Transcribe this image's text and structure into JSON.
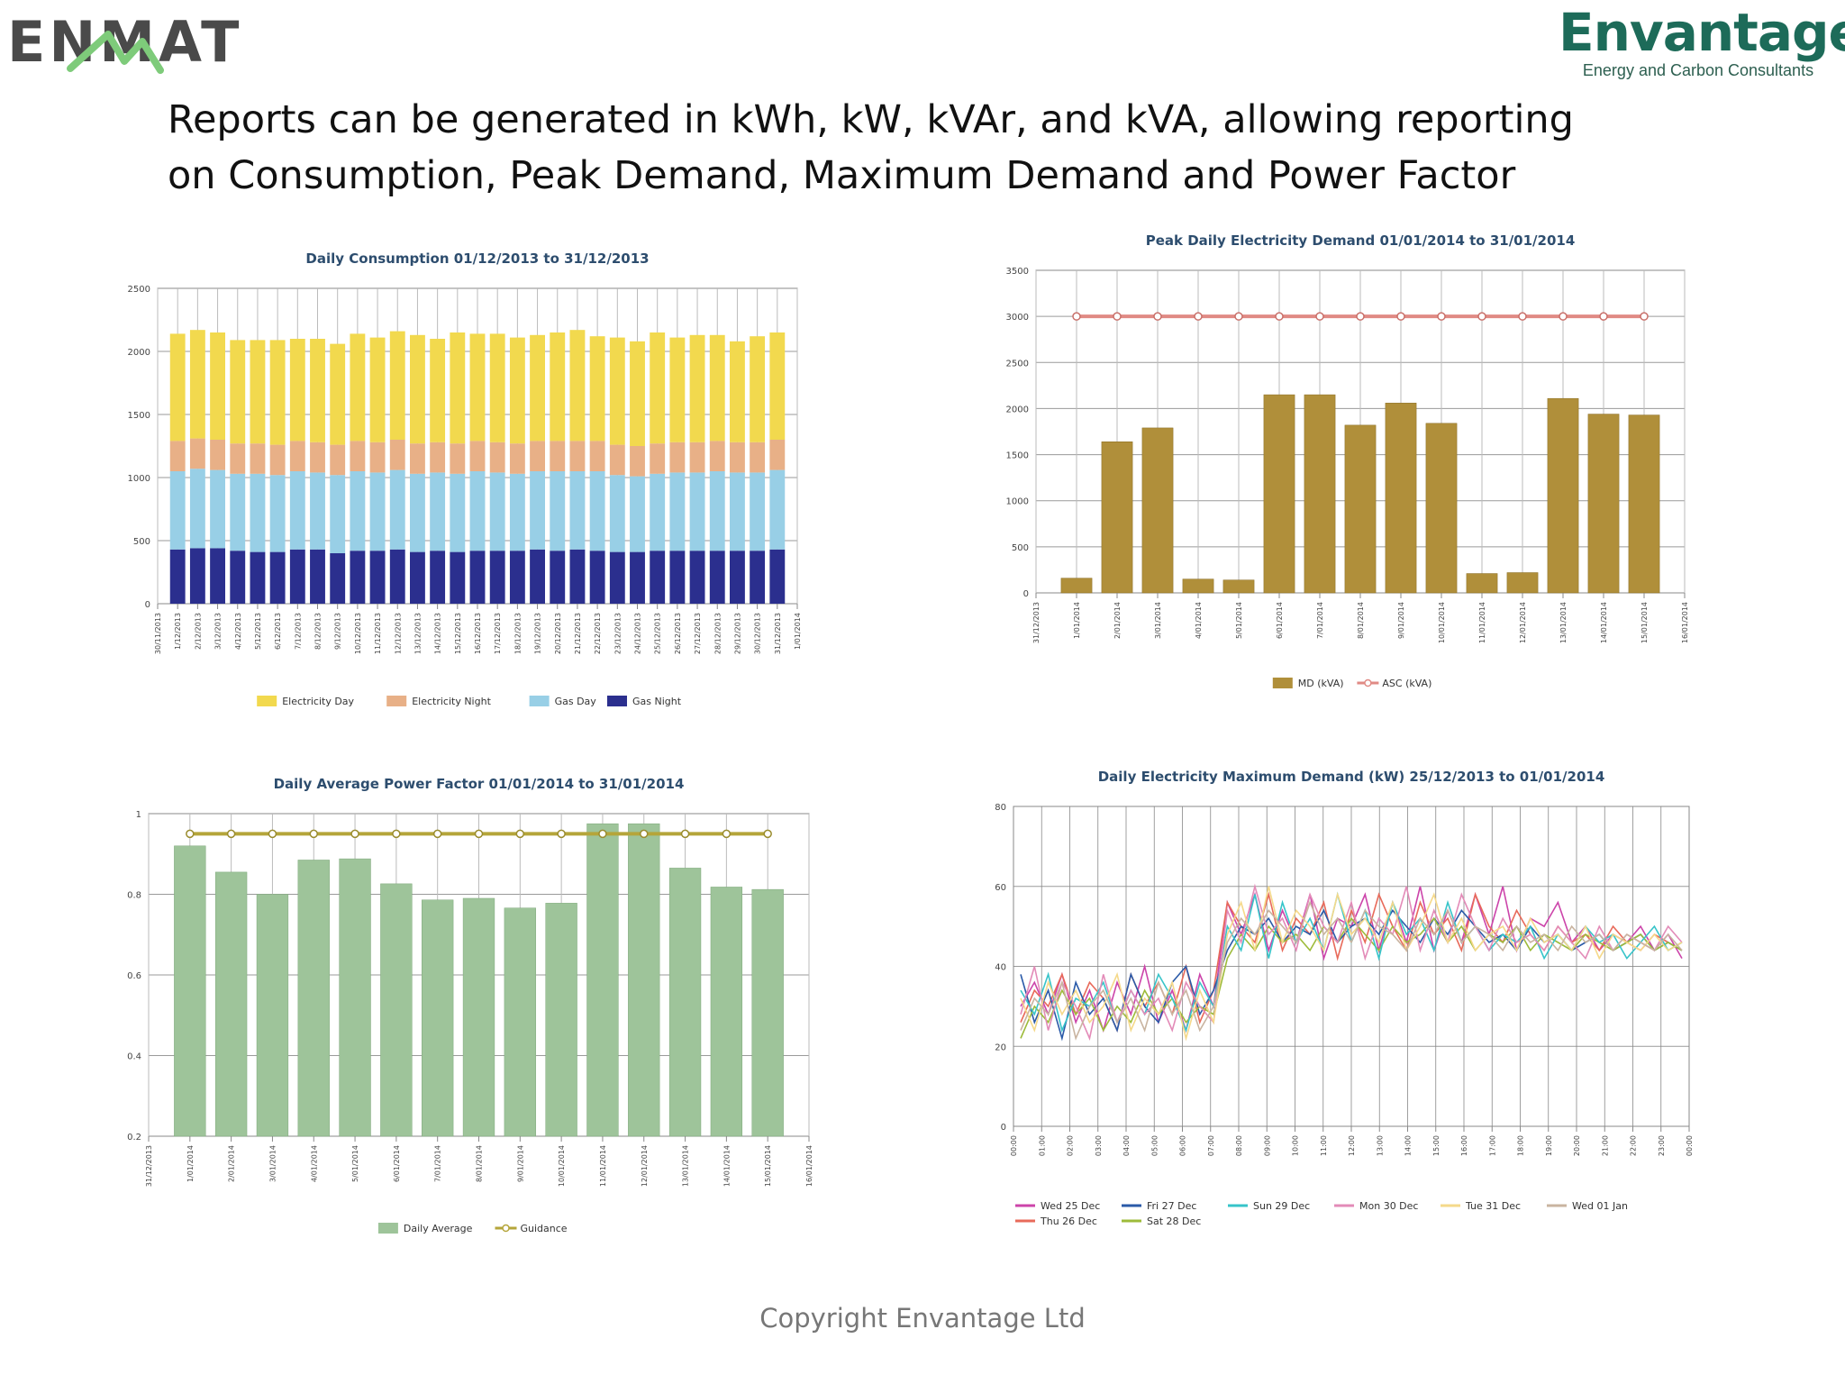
{
  "logos": {
    "left_text": "ENMAT",
    "right_name": "Envantage",
    "right_tagline": "Energy and Carbon Consultants"
  },
  "headline": {
    "line1": "Reports can be generated in kWh, kW, kVAr, and kVA, allowing reporting",
    "line2": "on Consumption, Peak Demand, Maximum Demand and Power Factor"
  },
  "footer": {
    "text": "Copyright Envantage Ltd"
  },
  "colors": {
    "electricity_day": "#f2d94e",
    "electricity_night": "#e8b087",
    "gas_day": "#98cfe6",
    "gas_night": "#2b2f8e",
    "md_bar": "#b08f3a",
    "asc_line": "#e08a84",
    "pf_bar": "#9ec49a",
    "guidance_line": "#b5a53a",
    "brand_green": "#1d6b59",
    "enmat_grey": "#4a4a4a",
    "enmat_green": "#7ecb7a"
  },
  "chart_data": [
    {
      "id": "consumption",
      "type": "bar",
      "stacked": true,
      "title": "Daily Consumption 01/12/2013 to 31/12/2013",
      "x_tick_labels": [
        "30/11/2013",
        "1/12/2013",
        "2/12/2013",
        "3/12/2013",
        "4/12/2013",
        "5/12/2013",
        "6/12/2013",
        "7/12/2013",
        "8/12/2013",
        "9/12/2013",
        "10/12/2013",
        "11/12/2013",
        "12/12/2013",
        "13/12/2013",
        "14/12/2013",
        "15/12/2013",
        "16/12/2013",
        "17/12/2013",
        "18/12/2013",
        "19/12/2013",
        "20/12/2013",
        "21/12/2013",
        "22/12/2013",
        "23/12/2013",
        "24/12/2013",
        "25/12/2013",
        "26/12/2013",
        "27/12/2013",
        "28/12/2013",
        "29/12/2013",
        "30/12/2013",
        "31/12/2013",
        "1/01/2014"
      ],
      "categories": [
        "1/12/2013",
        "2/12/2013",
        "3/12/2013",
        "4/12/2013",
        "5/12/2013",
        "6/12/2013",
        "7/12/2013",
        "8/12/2013",
        "9/12/2013",
        "10/12/2013",
        "11/12/2013",
        "12/12/2013",
        "13/12/2013",
        "14/12/2013",
        "15/12/2013",
        "16/12/2013",
        "17/12/2013",
        "18/12/2013",
        "19/12/2013",
        "20/12/2013",
        "21/12/2013",
        "22/12/2013",
        "23/12/2013",
        "24/12/2013",
        "25/12/2013",
        "26/12/2013",
        "27/12/2013",
        "28/12/2013",
        "29/12/2013",
        "30/12/2013",
        "31/12/2013"
      ],
      "ylim": [
        0,
        2500
      ],
      "yticks": [
        0,
        500,
        1000,
        1500,
        2000,
        2500
      ],
      "legend_position": "bottom",
      "series": [
        {
          "name": "Gas Night",
          "color_key": "gas_night",
          "values": [
            430,
            440,
            440,
            420,
            410,
            410,
            430,
            430,
            400,
            420,
            420,
            430,
            410,
            420,
            410,
            420,
            420,
            420,
            430,
            420,
            430,
            420,
            410,
            410,
            420,
            420,
            420,
            420,
            420,
            420,
            430
          ]
        },
        {
          "name": "Gas Day",
          "color_key": "gas_day",
          "values": [
            620,
            630,
            620,
            610,
            620,
            610,
            620,
            610,
            620,
            630,
            620,
            630,
            620,
            620,
            620,
            630,
            620,
            610,
            620,
            630,
            620,
            630,
            610,
            600,
            610,
            620,
            620,
            630,
            620,
            620,
            630
          ]
        },
        {
          "name": "Electricity Night",
          "color_key": "electricity_night",
          "values": [
            240,
            240,
            240,
            240,
            240,
            240,
            240,
            240,
            240,
            240,
            240,
            240,
            240,
            240,
            240,
            240,
            240,
            240,
            240,
            240,
            240,
            240,
            240,
            240,
            240,
            240,
            240,
            240,
            240,
            240,
            240
          ]
        },
        {
          "name": "Electricity Day",
          "color_key": "electricity_day",
          "values": [
            850,
            860,
            850,
            820,
            820,
            830,
            810,
            820,
            800,
            850,
            830,
            860,
            860,
            820,
            880,
            850,
            860,
            840,
            840,
            860,
            880,
            830,
            850,
            830,
            880,
            830,
            850,
            840,
            800,
            840,
            850
          ]
        }
      ]
    },
    {
      "id": "peak_demand",
      "type": "bar",
      "title": "Peak Daily Electricity Demand 01/01/2014 to 31/01/2014",
      "categories": [
        "31/12/2013",
        "1/01/2014",
        "2/01/2014",
        "3/01/2014",
        "4/01/2014",
        "5/01/2014",
        "6/01/2014",
        "7/01/2014",
        "8/01/2014",
        "9/01/2014",
        "10/01/2014",
        "11/01/2014",
        "12/01/2014",
        "13/01/2014",
        "14/01/2014",
        "15/01/2014",
        "16/01/2014"
      ],
      "ylim": [
        0,
        3500
      ],
      "yticks": [
        0,
        500,
        1000,
        1500,
        2000,
        2500,
        3000,
        3500
      ],
      "legend_position": "bottom",
      "series": [
        {
          "name": "MD (kVA)",
          "color_key": "md_bar",
          "values": [
            null,
            160,
            1640,
            1790,
            150,
            140,
            2150,
            2150,
            1820,
            2060,
            1840,
            210,
            220,
            2110,
            1940,
            1930,
            null
          ]
        },
        {
          "name": "ASC (kVA)",
          "color_key": "asc_line",
          "style": "line",
          "values": [
            null,
            3000,
            3000,
            3000,
            3000,
            3000,
            3000,
            3000,
            3000,
            3000,
            3000,
            3000,
            3000,
            3000,
            3000,
            3000,
            null
          ]
        }
      ]
    },
    {
      "id": "power_factor",
      "type": "bar",
      "title": "Daily Average Power Factor 01/01/2014 to 31/01/2014",
      "categories": [
        "31/12/2013",
        "1/01/2014",
        "2/01/2014",
        "3/01/2014",
        "4/01/2014",
        "5/01/2014",
        "6/01/2014",
        "7/01/2014",
        "8/01/2014",
        "9/01/2014",
        "10/01/2014",
        "11/01/2014",
        "12/01/2014",
        "13/01/2014",
        "14/01/2014",
        "15/01/2014",
        "16/01/2014"
      ],
      "ylim": [
        0.2,
        1
      ],
      "yticks": [
        0.2,
        0.4,
        0.6,
        0.8,
        1
      ],
      "ytick_labels": [
        "0.2",
        "0.4",
        "0.6",
        "0.8",
        "1"
      ],
      "legend_position": "bottom",
      "series": [
        {
          "name": "Daily Average",
          "color_key": "pf_bar",
          "values": [
            null,
            0.92,
            0.855,
            0.8,
            0.885,
            0.888,
            0.826,
            0.786,
            0.79,
            0.766,
            0.778,
            0.975,
            0.975,
            0.865,
            0.818,
            0.812,
            null
          ]
        },
        {
          "name": "Guidance",
          "color_key": "guidance_line",
          "style": "line",
          "values": [
            null,
            0.95,
            0.95,
            0.95,
            0.95,
            0.95,
            0.95,
            0.95,
            0.95,
            0.95,
            0.95,
            0.95,
            0.95,
            0.95,
            0.95,
            0.95,
            null
          ]
        }
      ]
    },
    {
      "id": "max_demand",
      "type": "line",
      "title": "Daily Electricity Maximum Demand (kW) 25/12/2013 to 01/01/2014",
      "x_tick_labels": [
        "00:00",
        "01:00",
        "02:00",
        "03:00",
        "04:00",
        "05:00",
        "06:00",
        "07:00",
        "08:00",
        "09:00",
        "10:00",
        "11:00",
        "12:00",
        "13:00",
        "14:00",
        "15:00",
        "16:00",
        "17:00",
        "18:00",
        "19:00",
        "20:00",
        "21:00",
        "22:00",
        "23:00",
        "00:00"
      ],
      "ylim": [
        0,
        80
      ],
      "yticks": [
        0,
        20,
        40,
        60,
        80
      ],
      "legend_position": "bottom",
      "series": [
        {
          "name": "Wed 25 Dec",
          "color": "#cc44aa",
          "values": [
            30,
            36,
            28,
            38,
            26,
            34,
            24,
            36,
            28,
            40,
            26,
            34,
            24,
            38,
            30,
            56,
            48,
            58,
            44,
            54,
            46,
            58,
            42,
            52,
            50,
            58,
            44,
            56,
            46,
            60,
            44,
            54,
            46,
            58,
            48,
            60,
            44,
            52,
            50,
            56,
            46,
            50,
            44,
            48,
            46,
            50,
            44,
            48,
            42
          ]
        },
        {
          "name": "Thu 26 Dec",
          "color": "#e86a5a",
          "values": [
            26,
            34,
            30,
            38,
            28,
            36,
            32,
            24,
            38,
            30,
            36,
            28,
            40,
            26,
            34,
            56,
            50,
            46,
            58,
            44,
            52,
            48,
            56,
            42,
            54,
            46,
            58,
            50,
            44,
            56,
            48,
            52,
            44,
            58,
            50,
            46,
            54,
            48,
            44,
            50,
            46,
            48,
            44,
            50,
            46,
            44,
            48,
            46,
            44
          ]
        },
        {
          "name": "Fri 27 Dec",
          "color": "#2a5aa8",
          "values": [
            38,
            26,
            34,
            22,
            36,
            28,
            32,
            24,
            38,
            30,
            26,
            36,
            40,
            28,
            34,
            44,
            50,
            48,
            52,
            46,
            50,
            48,
            54,
            46,
            50,
            52,
            48,
            54,
            50,
            46,
            52,
            48,
            54,
            50,
            46,
            48,
            44,
            50,
            46,
            48,
            44,
            46,
            48,
            44,
            46,
            48,
            44,
            46,
            44
          ]
        },
        {
          "name": "Sat 28 Dec",
          "color": "#9dbb3a",
          "values": [
            22,
            30,
            26,
            34,
            28,
            32,
            24,
            30,
            26,
            34,
            28,
            32,
            26,
            30,
            28,
            42,
            48,
            44,
            50,
            46,
            48,
            44,
            50,
            46,
            52,
            48,
            44,
            50,
            46,
            48,
            52,
            46,
            50,
            44,
            48,
            46,
            50,
            44,
            48,
            46,
            44,
            48,
            46,
            44,
            46,
            48,
            44,
            46,
            44
          ]
        },
        {
          "name": "Sun 29 Dec",
          "color": "#37c4c9",
          "values": [
            34,
            28,
            38,
            24,
            32,
            30,
            36,
            26,
            34,
            28,
            38,
            32,
            24,
            36,
            30,
            50,
            44,
            58,
            42,
            56,
            46,
            52,
            44,
            58,
            46,
            54,
            42,
            56,
            48,
            52,
            44,
            56,
            46,
            50,
            44,
            48,
            46,
            50,
            42,
            48,
            44,
            50,
            46,
            48,
            42,
            46,
            50,
            44,
            46
          ]
        },
        {
          "name": "Mon 30 Dec",
          "color": "#e38bb8",
          "values": [
            28,
            40,
            24,
            36,
            30,
            22,
            38,
            26,
            34,
            28,
            32,
            24,
            36,
            30,
            26,
            54,
            46,
            60,
            48,
            52,
            44,
            58,
            50,
            46,
            56,
            42,
            52,
            48,
            60,
            44,
            54,
            46,
            58,
            50,
            44,
            52,
            46,
            48,
            44,
            50,
            46,
            42,
            50,
            44,
            48,
            46,
            44,
            50,
            46
          ]
        },
        {
          "name": "Tue 31 Dec",
          "color": "#f5d98a",
          "values": [
            32,
            24,
            36,
            28,
            34,
            26,
            30,
            38,
            24,
            32,
            28,
            36,
            22,
            34,
            26,
            48,
            56,
            44,
            60,
            46,
            54,
            50,
            44,
            58,
            48,
            52,
            46,
            56,
            44,
            50,
            58,
            46,
            52,
            44,
            48,
            50,
            44,
            52,
            46,
            48,
            44,
            50,
            42,
            48,
            46,
            44,
            48,
            44,
            46
          ]
        },
        {
          "name": "Wed 01 Jan",
          "color": "#c9b4a0",
          "values": [
            24,
            32,
            28,
            36,
            22,
            30,
            34,
            26,
            32,
            24,
            36,
            28,
            34,
            24,
            30,
            46,
            52,
            48,
            54,
            50,
            46,
            56,
            48,
            52,
            46,
            54,
            50,
            48,
            44,
            52,
            48,
            54,
            46,
            50,
            48,
            44,
            50,
            46,
            48,
            44,
            50,
            46,
            48,
            44,
            48,
            46,
            44,
            48,
            44
          ]
        }
      ]
    }
  ]
}
